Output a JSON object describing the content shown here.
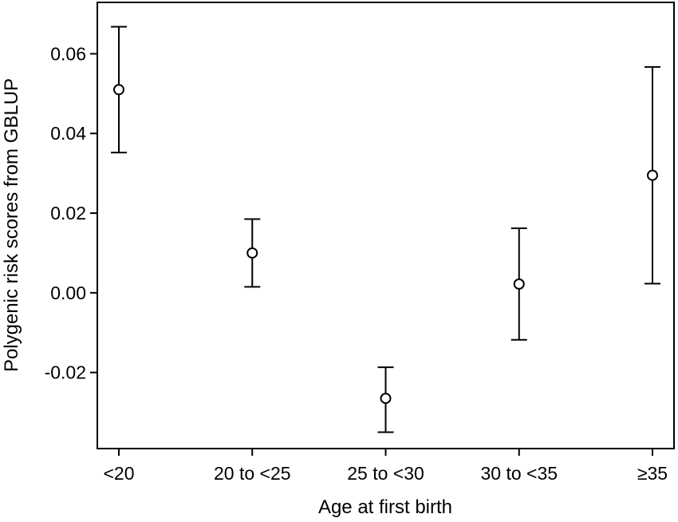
{
  "chart_data": {
    "type": "scatter",
    "subtype": "point-with-error-bars",
    "title": "",
    "xlabel": "Age at first birth",
    "ylabel": "Polygenic risk scores from GBLUP",
    "categories": [
      "<20",
      "20 to <25",
      "25 to <30",
      "30 to <35",
      "≥35"
    ],
    "values": [
      0.051,
      0.01,
      -0.0265,
      0.0022,
      0.0295
    ],
    "lower": [
      0.0352,
      0.0015,
      -0.035,
      -0.0118,
      0.0023
    ],
    "upper": [
      0.0668,
      0.0185,
      -0.0187,
      0.0162,
      0.0567
    ],
    "yticks": [
      -0.02,
      0.0,
      0.02,
      0.04,
      0.06
    ],
    "ytick_labels": [
      "-0.02",
      "0.00",
      "0.02",
      "0.04",
      "0.06"
    ],
    "ylim": [
      -0.0391,
      0.0729
    ],
    "grid": false,
    "legend": "none",
    "marker": "open-circle",
    "color": "#000000"
  }
}
